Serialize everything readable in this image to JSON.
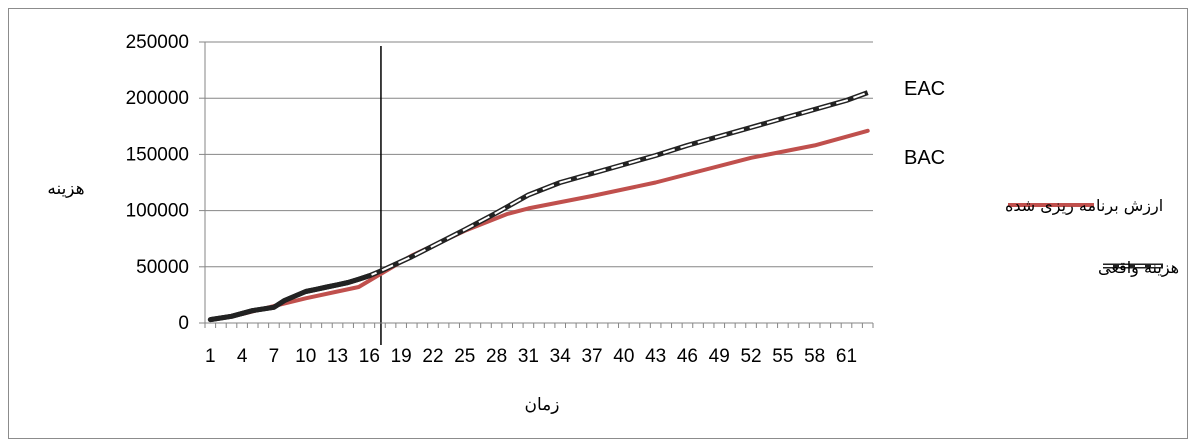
{
  "chart_data": {
    "type": "line",
    "title": "",
    "xlabel": "زمان",
    "ylabel": "هزینه",
    "ylim": [
      0,
      250000
    ],
    "yticks": [
      0,
      50000,
      100000,
      150000,
      200000,
      250000
    ],
    "ytick_labels": [
      "0",
      "50000",
      "100000",
      "150000",
      "200000",
      "250000"
    ],
    "x_tick_labels": [
      "1",
      "4",
      "7",
      "10",
      "13",
      "16",
      "19",
      "22",
      "25",
      "28",
      "31",
      "34",
      "37",
      "40",
      "43",
      "46",
      "49",
      "52",
      "55",
      "58",
      "61"
    ],
    "grid": true,
    "legend_position": "right",
    "colors": {
      "planned": "#c0504d",
      "actual": "#222222",
      "frame": "#8c8c8c",
      "grid": "#868686"
    },
    "series": [
      {
        "name": "ارزش برنامه ریزی شده",
        "style": "solid",
        "x": [
          1,
          4,
          7,
          10,
          13,
          15,
          20,
          25,
          29,
          31,
          37,
          43,
          52,
          58,
          63
        ],
        "y": [
          3000,
          8000,
          15000,
          22000,
          28000,
          32000,
          60000,
          82000,
          97000,
          102000,
          113000,
          125000,
          147000,
          158000,
          171000
        ]
      },
      {
        "name": "هزینه واقعی",
        "style": "dashed",
        "x": [
          1,
          3,
          5,
          7,
          8,
          9,
          10,
          11,
          12,
          13,
          14,
          15,
          16,
          17,
          20,
          25,
          28,
          31,
          34,
          37,
          40,
          43,
          46,
          49,
          52,
          55,
          58,
          61,
          63
        ],
        "y": [
          3000,
          6000,
          11000,
          14000,
          20000,
          24000,
          28000,
          30000,
          32000,
          34000,
          36000,
          39000,
          42000,
          46000,
          59000,
          83000,
          98000,
          114000,
          125000,
          133000,
          141000,
          149000,
          158000,
          166000,
          174000,
          182000,
          190000,
          198000,
          205000
        ]
      }
    ],
    "current_time_marker": 17,
    "annotations": [
      "EAC",
      "BAC"
    ]
  }
}
